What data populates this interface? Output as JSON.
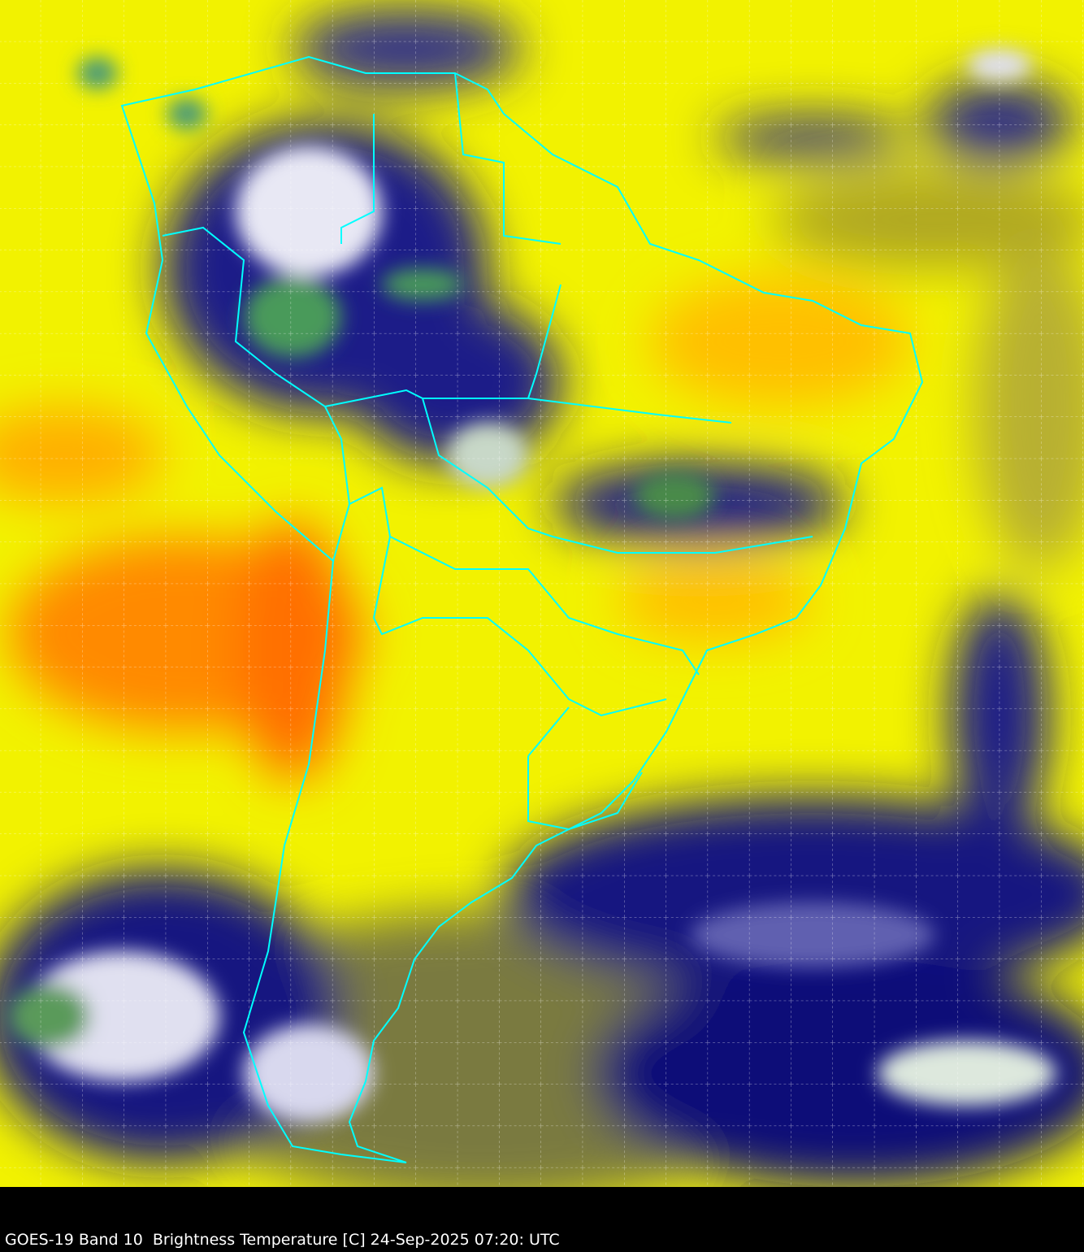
{
  "caption": "GOES-19 Band 10  Brightness Temperature [C] 24-Sep-2025 07:20: UTC",
  "map": {
    "satellite": "GOES-19",
    "band": "Band 10",
    "variable": "Brightness Temperature [C]",
    "colors": {
      "background": "#000000",
      "warm_dry": "#ff8000",
      "moderate": "#ffff00",
      "olive": "#8a8a30",
      "cold": "#0a0a7a",
      "coldest_cloud": "#ffffff",
      "deep_convection": "#3f8a4f",
      "borders": "#00ffff",
      "grid": "#ffffff"
    },
    "grid": "dashed graticule",
    "region": "South America"
  }
}
